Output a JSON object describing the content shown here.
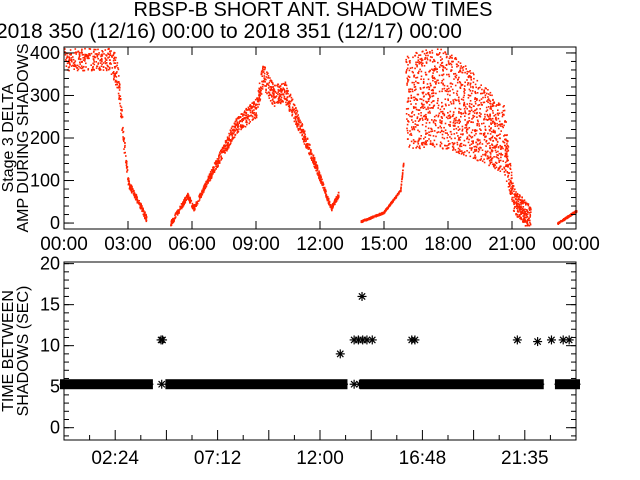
{
  "title": "RBSP-B SHORT ANT. SHADOW TIMES",
  "subtitle": "2018 350 (12/16) 00:00 to 2018 351 (12/17) 00:00",
  "colors": {
    "scatter": "#ff2200",
    "axes": "#000000",
    "background": "#ffffff"
  },
  "chart_data": [
    {
      "type": "scatter",
      "ylabel": "Stage 3 DELTA AMP DURING SHADOWS",
      "xlim_hours": [
        0,
        24
      ],
      "ylim": [
        -14,
        414
      ],
      "yticks": [
        "0",
        "100",
        "200",
        "300",
        "400"
      ],
      "xticks": [
        "00:00",
        "03:00",
        "06:00",
        "09:00",
        "12:00",
        "15:00",
        "18:00",
        "21:00",
        "00:00"
      ],
      "marker": "dot",
      "color": "#ff2200",
      "segments": [
        {
          "x_hours": [
            0.0,
            0.3,
            2.1,
            2.5,
            2.77,
            3.0,
            3.6,
            3.85
          ],
          "y": [
            400,
            400,
            400,
            350,
            195,
            94,
            38,
            10
          ],
          "spread": 30
        },
        {
          "x_hours": [
            4.97,
            5.77,
            6.05,
            7.0,
            8.0,
            9.0,
            9.3,
            9.8,
            10.3,
            11.0,
            11.8,
            12.5,
            12.85
          ],
          "y": [
            0,
            66,
            35,
            130,
            226,
            273,
            350,
            300,
            313,
            235,
            132,
            35,
            70
          ],
          "spread": 25
        },
        {
          "x_hours": [
            13.9,
            14.96,
            15.75,
            15.9
          ],
          "y": [
            5,
            26,
            78,
            150
          ],
          "spread": 8
        },
        {
          "x_hours": [
            16.0,
            17.0,
            18.0,
            19.0,
            20.0,
            20.6,
            21.05,
            21.85
          ],
          "y": [
            280,
            300,
            290,
            260,
            220,
            200,
            55,
            10
          ],
          "spread": 120
        },
        {
          "x_hours": [
            23.1,
            24.0
          ],
          "y": [
            0,
            30
          ],
          "spread": 8
        }
      ]
    },
    {
      "type": "scatter",
      "ylabel": "TIME BETWEEN SHADOWS (SEC)",
      "xlim_hours": [
        0,
        24
      ],
      "ylim": [
        -1.5,
        20.2
      ],
      "yticks": [
        "0",
        "5",
        "10",
        "15",
        "20"
      ],
      "xticks": [
        "02:24",
        "07:12",
        "12:00",
        "16:48",
        "21:35"
      ],
      "marker": "asterisk",
      "dense_band": {
        "value": 5.3,
        "ranges_hours": [
          [
            0.0,
            3.98
          ],
          [
            4.94,
            13.1
          ],
          [
            14.05,
            22.3
          ],
          [
            23.2,
            24.0
          ]
        ]
      },
      "points": [
        {
          "x_hours": 4.55,
          "y": 10.7
        },
        {
          "x_hours": 4.62,
          "y": 10.7
        },
        {
          "x_hours": 4.58,
          "y": 5.3
        },
        {
          "x_hours": 12.95,
          "y": 9.0
        },
        {
          "x_hours": 13.6,
          "y": 5.3
        },
        {
          "x_hours": 13.85,
          "y": 5.3
        },
        {
          "x_hours": 13.97,
          "y": 16.0
        },
        {
          "x_hours": 13.6,
          "y": 10.7
        },
        {
          "x_hours": 13.8,
          "y": 10.7
        },
        {
          "x_hours": 14.0,
          "y": 10.7
        },
        {
          "x_hours": 14.2,
          "y": 10.7
        },
        {
          "x_hours": 14.45,
          "y": 10.7
        },
        {
          "x_hours": 16.3,
          "y": 10.7
        },
        {
          "x_hours": 16.45,
          "y": 10.7
        },
        {
          "x_hours": 21.25,
          "y": 10.7
        },
        {
          "x_hours": 22.2,
          "y": 10.5
        },
        {
          "x_hours": 22.85,
          "y": 10.7
        },
        {
          "x_hours": 23.4,
          "y": 10.7
        },
        {
          "x_hours": 23.68,
          "y": 10.7
        }
      ]
    }
  ]
}
